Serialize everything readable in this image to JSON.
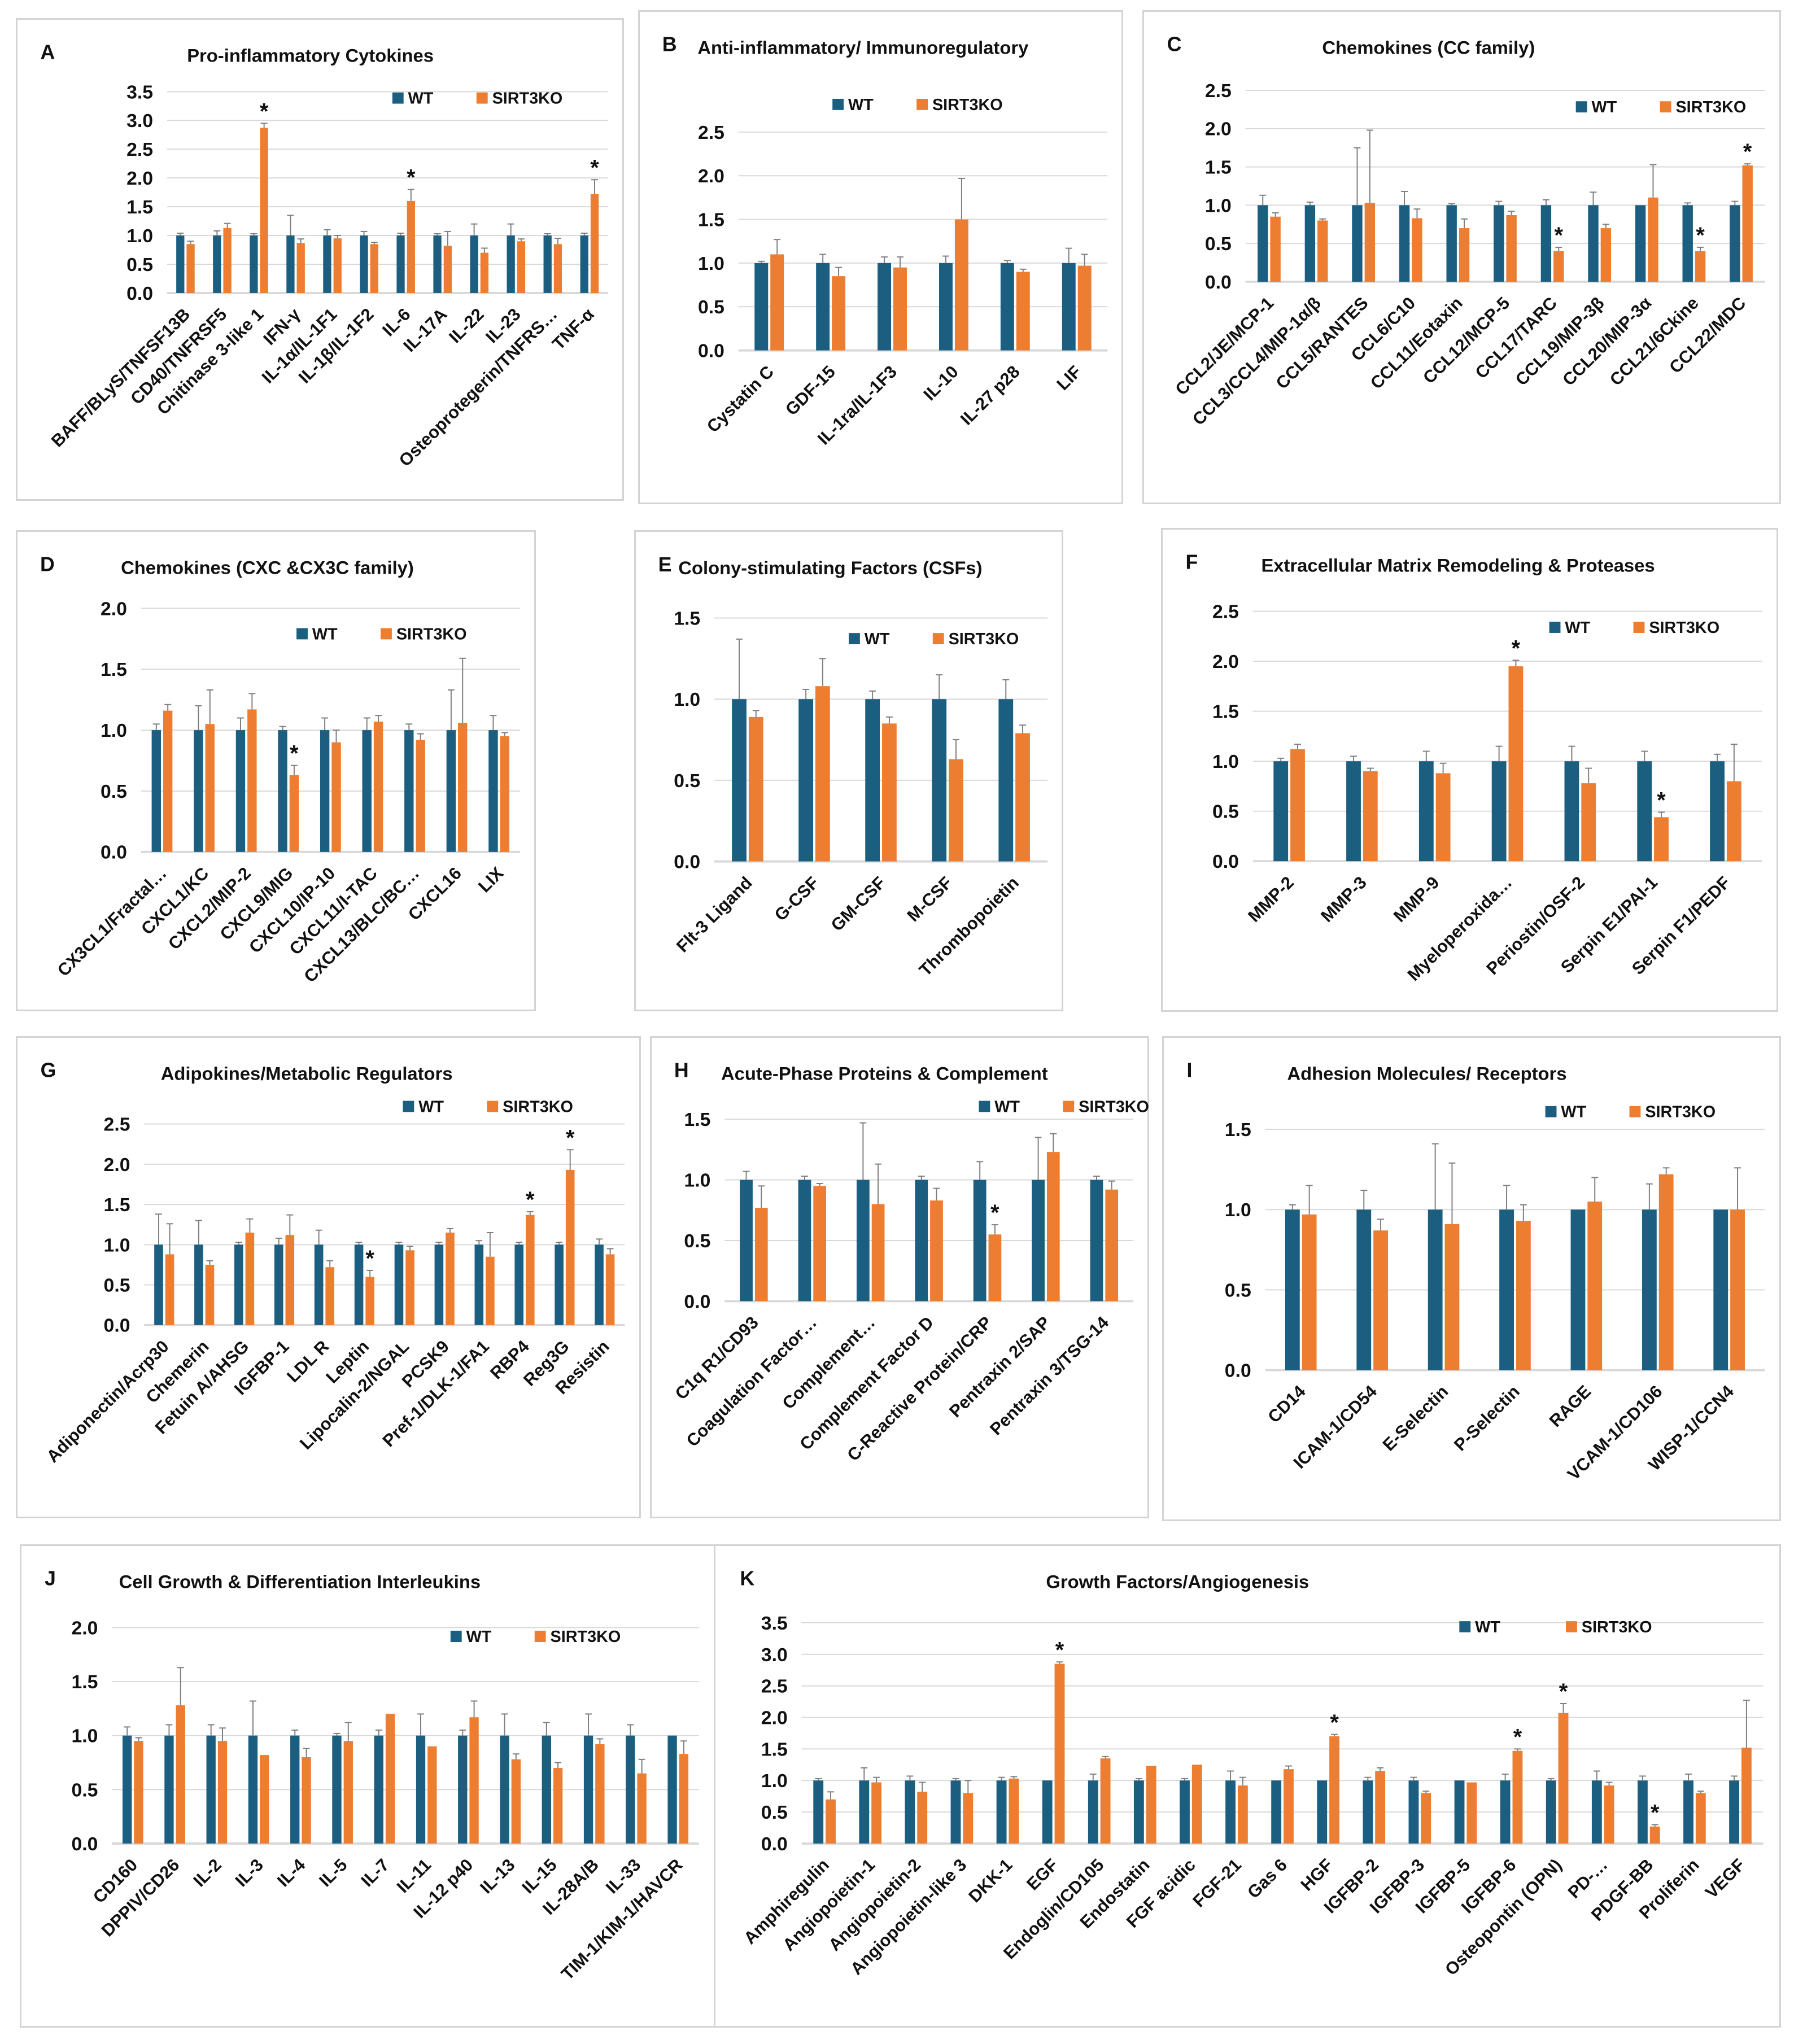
{
  "legend": {
    "wt": "WT",
    "ko": "SIRT3KO"
  },
  "colors": {
    "wt": "#1b5e80",
    "ko": "#ed7d31",
    "grid": "#d9d9d9",
    "err": "#7f7f7f"
  },
  "chart_data": [
    {
      "type": "bar",
      "letter": "A",
      "title": "Pro-inflammatory Cytokines",
      "ylim": [
        0,
        3.5
      ],
      "ystep": 0.5,
      "legend": "top-right",
      "categories": [
        "BAFF/BLyS/TNFSF13B",
        "CD40/TNFRSF5",
        "Chitinase 3-like 1",
        "IFN-γ",
        "IL-1α/IL-1F1",
        "IL-1β/IL-1F2",
        "IL-6",
        "IL-17A",
        "IL-22",
        "IL-23",
        "Osteoprotegerin/TNFRS…",
        "TNF-α"
      ],
      "series": [
        {
          "name": "WT",
          "values": [
            1,
            1,
            1,
            1,
            1,
            1,
            1,
            1,
            1,
            1,
            1,
            1
          ],
          "errors": [
            0.04,
            0.08,
            0.03,
            0.35,
            0.1,
            0.07,
            0.04,
            0.03,
            0.2,
            0.2,
            0.03,
            0.04
          ]
        },
        {
          "name": "SIRT3KO",
          "values": [
            0.85,
            1.13,
            2.87,
            0.87,
            0.95,
            0.85,
            1.6,
            0.82,
            0.7,
            0.9,
            0.85,
            1.72
          ],
          "errors": [
            0.05,
            0.08,
            0.08,
            0.07,
            0.05,
            0.03,
            0.2,
            0.25,
            0.08,
            0.04,
            0.1,
            0.25
          ]
        }
      ],
      "significant": [
        2,
        6,
        11
      ]
    },
    {
      "type": "bar",
      "letter": "B",
      "title": "Anti-inflammatory/ Immunoregulatory",
      "ylim": [
        0,
        2.5
      ],
      "ystep": 0.5,
      "legend": "top-right",
      "categories": [
        "Cystatin C",
        "GDF-15",
        "IL-1ra/IL-1F3",
        "IL-10",
        "IL-27 p28",
        "LIF"
      ],
      "series": [
        {
          "name": "WT",
          "values": [
            1,
            1,
            1,
            1,
            1,
            1
          ],
          "errors": [
            0.02,
            0.1,
            0.07,
            0.08,
            0.03,
            0.17
          ]
        },
        {
          "name": "SIRT3KO",
          "values": [
            1.1,
            0.85,
            0.95,
            1.5,
            0.9,
            0.97
          ],
          "errors": [
            0.17,
            0.1,
            0.12,
            0.47,
            0.03,
            0.13
          ]
        }
      ],
      "significant": []
    },
    {
      "type": "bar",
      "letter": "C",
      "title": "Chemokines (CC family)",
      "ylim": [
        0,
        2.5
      ],
      "ystep": 0.5,
      "legend": "top-right",
      "categories": [
        "CCL2/JE/MCP-1",
        "CCL3/CCL4/MIP-1α/β",
        "CCL5/RANTES",
        "CCL6/C10",
        "CCL11/Eotaxin",
        "CCL12/MCP-5",
        "CCL17/TARC",
        "CCL19/MIP-3β",
        "CCL20/MIP-3α",
        "CCL21/6Ckine",
        "CCL22/MDC"
      ],
      "series": [
        {
          "name": "WT",
          "values": [
            1,
            1,
            1,
            1,
            1,
            1,
            1,
            1,
            1,
            1,
            1
          ],
          "errors": [
            0.13,
            0.04,
            0.75,
            0.18,
            0.02,
            0.05,
            0.07,
            0.17,
            0,
            0.03,
            0.05
          ]
        },
        {
          "name": "SIRT3KO",
          "values": [
            0.85,
            0.8,
            1.03,
            0.83,
            0.7,
            0.87,
            0.4,
            0.7,
            1.1,
            0.4,
            1.52
          ],
          "errors": [
            0.05,
            0.02,
            0.95,
            0.12,
            0.12,
            0.05,
            0.05,
            0.05,
            0.43,
            0.05,
            0.02
          ]
        }
      ],
      "significant": [
        6,
        9,
        10
      ]
    },
    {
      "type": "bar",
      "letter": "D",
      "title": "Chemokines (CXC &CX3C family)",
      "ylim": [
        0,
        2.0
      ],
      "ystep": 0.5,
      "legend": "top-right",
      "categories": [
        "CX3CL1/Fractal…",
        "CXCL1/KC",
        "CXCL2/MIP-2",
        "CXCL9/MIG",
        "CXCL10/IP-10",
        "CXCL11/I-TAC",
        "CXCL13/BLC/BC…",
        "CXCL16",
        "LIX"
      ],
      "series": [
        {
          "name": "WT",
          "values": [
            1,
            1,
            1,
            1,
            1,
            1,
            1,
            1,
            1
          ],
          "errors": [
            0.05,
            0.2,
            0.1,
            0.03,
            0.1,
            0.1,
            0.05,
            0.33,
            0.12
          ]
        },
        {
          "name": "SIRT3KO",
          "values": [
            1.16,
            1.05,
            1.17,
            0.63,
            0.9,
            1.07,
            0.92,
            1.06,
            0.95
          ],
          "errors": [
            0.05,
            0.28,
            0.13,
            0.08,
            0.1,
            0.05,
            0.05,
            0.53,
            0.03
          ]
        }
      ],
      "significant": [
        3
      ]
    },
    {
      "type": "bar",
      "letter": "E",
      "title": "Colony-stimulating Factors (CSFs)",
      "ylim": [
        0,
        1.5
      ],
      "ystep": 0.5,
      "legend": "top-right",
      "categories": [
        "Flt-3 Ligand",
        "G-CSF",
        "GM-CSF",
        "M-CSF",
        "Thrombopoietin"
      ],
      "series": [
        {
          "name": "WT",
          "values": [
            1,
            1,
            1,
            1,
            1
          ],
          "errors": [
            0.37,
            0.06,
            0.05,
            0.15,
            0.12
          ]
        },
        {
          "name": "SIRT3KO",
          "values": [
            0.89,
            1.08,
            0.85,
            0.63,
            0.79
          ],
          "errors": [
            0.04,
            0.17,
            0.04,
            0.12,
            0.05
          ]
        }
      ],
      "significant": []
    },
    {
      "type": "bar",
      "letter": "F",
      "title": "Extracellular Matrix Remodeling & Proteases",
      "ylim": [
        0,
        2.5
      ],
      "ystep": 0.5,
      "legend": "top-right",
      "categories": [
        "MMP-2",
        "MMP-3",
        "MMP-9",
        "Myeloperoxida…",
        "Periostin/OSF-2",
        "Serpin E1/PAI-1",
        "Serpin F1/PEDF"
      ],
      "series": [
        {
          "name": "WT",
          "values": [
            1,
            1,
            1,
            1,
            1,
            1,
            1
          ],
          "errors": [
            0.03,
            0.05,
            0.1,
            0.15,
            0.15,
            0.1,
            0.07
          ]
        },
        {
          "name": "SIRT3KO",
          "values": [
            1.12,
            0.9,
            0.88,
            1.95,
            0.78,
            0.44,
            0.8
          ],
          "errors": [
            0.05,
            0.03,
            0.1,
            0.06,
            0.15,
            0.05,
            0.37
          ]
        }
      ],
      "significant": [
        3,
        5
      ]
    },
    {
      "type": "bar",
      "letter": "G",
      "title": "Adipokines/Metabolic Regulators",
      "ylim": [
        0,
        2.5
      ],
      "ystep": 0.5,
      "legend": "top-right",
      "categories": [
        "Adiponectin/Acrp30",
        "Chemerin",
        "Fetuin A/AHSG",
        "IGFBP-1",
        "LDL R",
        "Leptin",
        "Lipocalin-2/NGAL",
        "PCSK9",
        "Pref-1/DLK-1/FA1",
        "RBP4",
        "Reg3G",
        "Resistin"
      ],
      "series": [
        {
          "name": "WT",
          "values": [
            1,
            1,
            1,
            1,
            1,
            1,
            1,
            1,
            1,
            1,
            1,
            1
          ],
          "errors": [
            0.38,
            0.3,
            0.03,
            0.08,
            0.18,
            0.03,
            0.03,
            0.03,
            0.05,
            0.03,
            0.03,
            0.07
          ]
        },
        {
          "name": "SIRT3KO",
          "values": [
            0.88,
            0.75,
            1.15,
            1.12,
            0.72,
            0.6,
            0.93,
            1.15,
            0.85,
            1.37,
            1.93,
            0.88
          ],
          "errors": [
            0.38,
            0.05,
            0.17,
            0.25,
            0.08,
            0.08,
            0.05,
            0.05,
            0.3,
            0.04,
            0.25,
            0.07
          ]
        }
      ],
      "significant": [
        5,
        9,
        10
      ]
    },
    {
      "type": "bar",
      "letter": "H",
      "title": "Acute-Phase Proteins & Complement",
      "ylim": [
        0,
        1.5
      ],
      "ystep": 0.5,
      "legend": "top-right",
      "categories": [
        "C1q R1/CD93",
        "Coagulation Factor…",
        "Complement…",
        "Complement Factor D",
        "C-Reactive Protein/CRP",
        "Pentraxin 2/SAP",
        "Pentraxin 3/TSG-14"
      ],
      "series": [
        {
          "name": "WT",
          "values": [
            1,
            1,
            1,
            1,
            1,
            1,
            1
          ],
          "errors": [
            0.07,
            0.03,
            0.47,
            0.03,
            0.15,
            0.35,
            0.03
          ]
        },
        {
          "name": "SIRT3KO",
          "values": [
            0.77,
            0.95,
            0.8,
            0.83,
            0.55,
            1.23,
            0.92
          ],
          "errors": [
            0.18,
            0.02,
            0.33,
            0.1,
            0.08,
            0.15,
            0.07
          ]
        }
      ],
      "significant": [
        4
      ]
    },
    {
      "type": "bar",
      "letter": "I",
      "title": "Adhesion Molecules/ Receptors",
      "ylim": [
        0,
        1.5
      ],
      "ystep": 0.5,
      "legend": "top-right",
      "categories": [
        "CD14",
        "ICAM-1/CD54",
        "E-Selectin",
        "P-Selectin",
        "RAGE",
        "VCAM-1/CD106",
        "WISP-1/CCN4"
      ],
      "series": [
        {
          "name": "WT",
          "values": [
            1,
            1,
            1,
            1,
            1,
            1,
            1
          ],
          "errors": [
            0.03,
            0.12,
            0.41,
            0.15,
            0,
            0.16,
            0
          ]
        },
        {
          "name": "SIRT3KO",
          "values": [
            0.97,
            0.87,
            0.91,
            0.93,
            1.05,
            1.22,
            1.0
          ],
          "errors": [
            0.18,
            0.07,
            0.38,
            0.1,
            0.15,
            0.04,
            0.26
          ]
        }
      ],
      "significant": []
    },
    {
      "type": "bar",
      "letter": "J",
      "title": "Cell Growth & Differentiation Interleukins",
      "ylim": [
        0,
        2.0
      ],
      "ystep": 0.5,
      "legend": "top-right",
      "categories": [
        "CD160",
        "DPPIV/CD26",
        "IL-2",
        "IL-3",
        "IL-4",
        "IL-5",
        "IL-7",
        "IL-11",
        "IL-12 p40",
        "IL-13",
        "IL-15",
        "IL-28A/B",
        "IL-33",
        "TIM-1/KIM-1/HAVCR"
      ],
      "series": [
        {
          "name": "WT",
          "values": [
            1,
            1,
            1,
            1,
            1,
            1,
            1,
            1,
            1,
            1,
            1,
            1,
            1,
            1
          ],
          "errors": [
            0.08,
            0.1,
            0.1,
            0.32,
            0.05,
            0.02,
            0.05,
            0.2,
            0.05,
            0.2,
            0.12,
            0.2,
            0.1,
            0
          ]
        },
        {
          "name": "SIRT3KO",
          "values": [
            0.95,
            1.28,
            0.95,
            0.82,
            0.8,
            0.95,
            1.2,
            0.9,
            1.17,
            0.78,
            0.7,
            0.92,
            0.65,
            0.83
          ],
          "errors": [
            0.03,
            0.35,
            0.12,
            0,
            0.08,
            0.17,
            0,
            0,
            0.15,
            0.05,
            0.05,
            0.05,
            0.13,
            0.12
          ]
        }
      ],
      "significant": []
    },
    {
      "type": "bar",
      "letter": "K",
      "title": "Growth Factors/Angiogenesis",
      "ylim": [
        0,
        3.5
      ],
      "ystep": 0.5,
      "legend": "top-right",
      "categories": [
        "Amphiregulin",
        "Angiopoietin-1",
        "Angiopoietin-2",
        "Angiopoietin-like 3",
        "DKK-1",
        "EGF",
        "Endoglin/CD105",
        "Endostatin",
        "FGF acidic",
        "FGF-21",
        "Gas 6",
        "HGF",
        "IGFBP-2",
        "IGFBP-3",
        "IGFBP-5",
        "IGFBP-6",
        "Osteopontin (OPN)",
        "PD-…",
        "PDGF-BB",
        "Proliferin",
        "VEGF"
      ],
      "series": [
        {
          "name": "WT",
          "values": [
            1,
            1,
            1,
            1,
            1,
            1,
            1,
            1,
            1,
            1,
            1,
            1,
            1,
            1,
            1,
            1,
            1,
            1,
            1,
            1,
            1
          ],
          "errors": [
            0.03,
            0.2,
            0.07,
            0.03,
            0.05,
            0,
            0.1,
            0.03,
            0.03,
            0.15,
            0,
            0,
            0.05,
            0.05,
            0,
            0.1,
            0.03,
            0.15,
            0.07,
            0.1,
            0.07
          ]
        },
        {
          "name": "SIRT3KO",
          "values": [
            0.7,
            0.97,
            0.82,
            0.8,
            1.03,
            2.85,
            1.35,
            1.23,
            1.25,
            0.92,
            1.18,
            1.7,
            1.15,
            0.8,
            0.97,
            1.47,
            2.07,
            0.92,
            0.27,
            0.8,
            1.52
          ],
          "errors": [
            0.12,
            0.08,
            0.15,
            0.2,
            0.03,
            0.03,
            0.03,
            0,
            0,
            0.13,
            0.05,
            0.03,
            0.05,
            0.03,
            0,
            0.03,
            0.15,
            0.05,
            0.03,
            0.03,
            0.75
          ]
        }
      ],
      "significant": [
        5,
        11,
        15,
        16,
        18
      ]
    }
  ]
}
